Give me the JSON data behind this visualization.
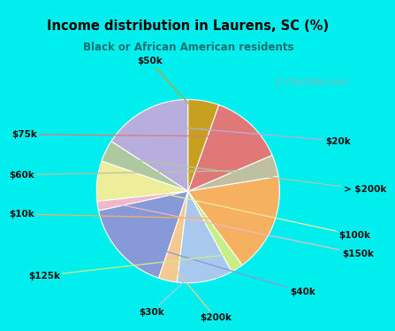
{
  "title": "Income distribution in Laurens, SC (%)",
  "subtitle": "Black or African American residents",
  "title_color": "#000000",
  "subtitle_color": "#007070",
  "bg_top": "#00EEEE",
  "bg_chart": "#e0f0e8",
  "watermark": "City-Data.com",
  "slices": [
    {
      "label": "$20k",
      "value": 14.5,
      "color": "#b8aedd"
    },
    {
      "label": "> $200k",
      "value": 3.5,
      "color": "#adc9a0"
    },
    {
      "label": "$100k",
      "value": 6.5,
      "color": "#eded9a"
    },
    {
      "label": "$150k",
      "value": 1.5,
      "color": "#f0b8c8"
    },
    {
      "label": "$40k",
      "value": 15.0,
      "color": "#8899d8"
    },
    {
      "label": "$200k",
      "value": 3.0,
      "color": "#f5c890"
    },
    {
      "label": "$30k",
      "value": 9.0,
      "color": "#a8c8ee"
    },
    {
      "label": "$125k",
      "value": 2.0,
      "color": "#c8ee88"
    },
    {
      "label": "$10k",
      "value": 16.0,
      "color": "#f5b060"
    },
    {
      "label": "$60k",
      "value": 3.5,
      "color": "#c0c0a0"
    },
    {
      "label": "$75k",
      "value": 12.0,
      "color": "#e07878"
    },
    {
      "label": "$50k",
      "value": 5.0,
      "color": "#c8a020"
    }
  ],
  "label_fontsize": 7.5,
  "label_color": "#111111"
}
